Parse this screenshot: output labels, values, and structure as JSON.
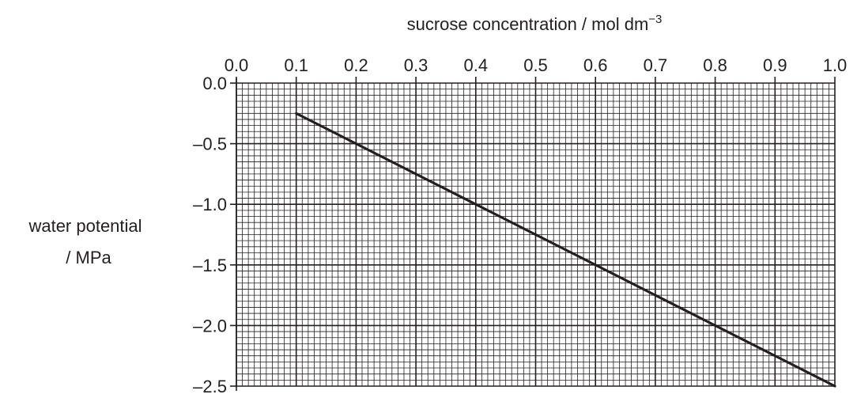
{
  "chart_data": {
    "type": "line",
    "title": "",
    "xlabel": "sucrose concentration / mol dm",
    "xlabel_superscript": "−3",
    "ylabel_lines": [
      "water potential",
      "/ MPa"
    ],
    "x_axis_position": "top",
    "xlim": [
      0.0,
      1.0
    ],
    "ylim": [
      -2.5,
      0.0
    ],
    "x_ticks": [
      "0.0",
      "0.1",
      "0.2",
      "0.3",
      "0.4",
      "0.5",
      "0.6",
      "0.7",
      "0.8",
      "0.9",
      "1.0"
    ],
    "y_ticks": [
      "0.0",
      "–0.5",
      "–1.0",
      "–1.5",
      "–2.0",
      "–2.5"
    ],
    "x_tick_values": [
      0.0,
      0.1,
      0.2,
      0.3,
      0.4,
      0.5,
      0.6,
      0.7,
      0.8,
      0.9,
      1.0
    ],
    "y_tick_values": [
      0.0,
      -0.5,
      -1.0,
      -1.5,
      -2.0,
      -2.5
    ],
    "grid": true,
    "grid_minor_per_major_x": 10,
    "grid_minor_per_major_y": 10,
    "series": [
      {
        "x": [
          0.1,
          1.0
        ],
        "y": [
          -0.25,
          -2.5
        ],
        "color": "#231f20"
      }
    ]
  }
}
